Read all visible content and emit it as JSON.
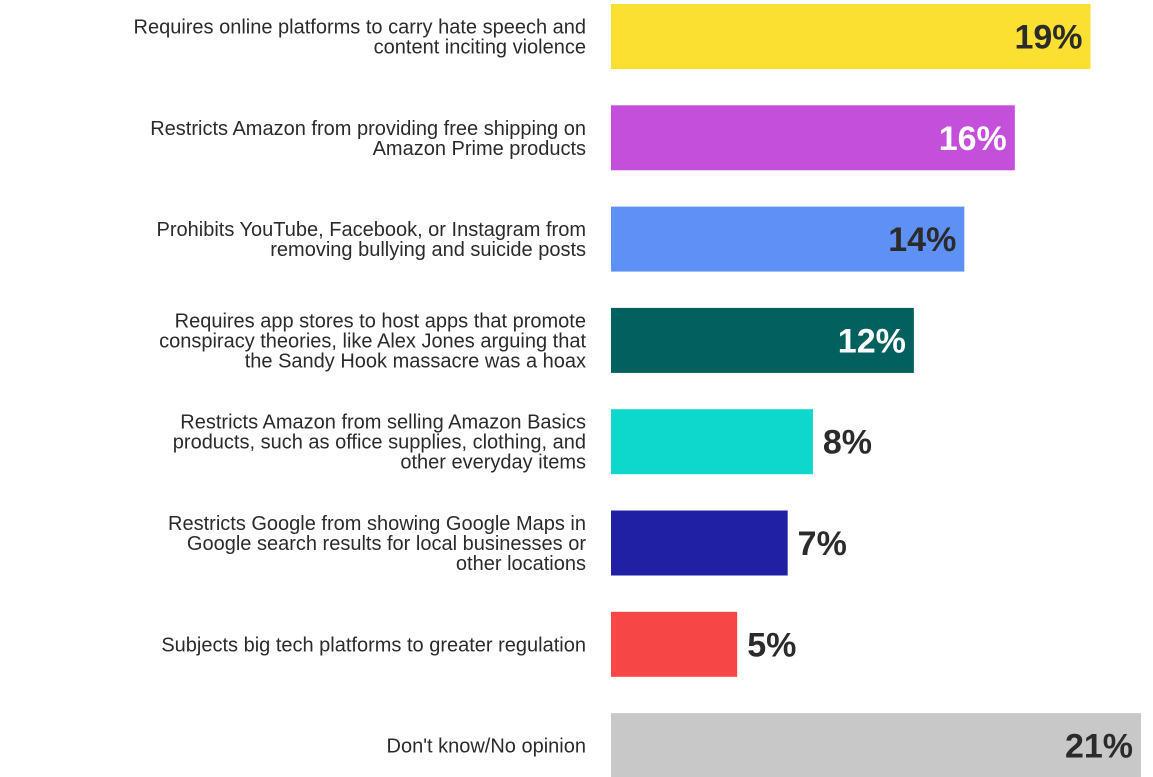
{
  "chart_data": {
    "type": "bar",
    "orientation": "horizontal",
    "title": "",
    "xlabel": "",
    "ylabel": "",
    "xlim": [
      0,
      21
    ],
    "grid": false,
    "legend": "none",
    "categories": [
      [
        "Requires online platforms to carry hate speech and",
        "content inciting violence"
      ],
      [
        "Restricts Amazon from providing free shipping on",
        "Amazon Prime products"
      ],
      [
        "Prohibits YouTube, Facebook, or Instagram from",
        "removing bullying and suicide posts"
      ],
      [
        "Requires app stores to host apps that promote",
        "conspiracy theories, like Alex Jones arguing that",
        "the Sandy Hook massacre was a hoax"
      ],
      [
        "Restricts Amazon from selling Amazon Basics",
        "products, such as office supplies, clothing, and",
        "other everyday items"
      ],
      [
        "Restricts Google from showing Google Maps in",
        "Google search results for local businesses or",
        "other locations"
      ],
      [
        "Subjects big tech platforms to greater regulation"
      ],
      [
        "Don't know/No opinion"
      ]
    ],
    "values": [
      19,
      16,
      14,
      12,
      8,
      7,
      5,
      21
    ],
    "value_labels": [
      "19%",
      "16%",
      "14%",
      "12%",
      "8%",
      "7%",
      "5%",
      "21%"
    ],
    "colors": [
      "#fbe032",
      "#c44fdb",
      "#5f91f5",
      "#02605e",
      "#0ed7cc",
      "#1f20a4",
      "#f74646",
      "#c8c8c8"
    ],
    "value_label_colors": [
      "#2b2b2b",
      "#ffffff",
      "#2b2b2b",
      "#ffffff",
      "#2b2b2b",
      "#2b2b2b",
      "#2b2b2b",
      "#2b2b2b"
    ],
    "value_label_position": [
      "inside",
      "inside",
      "inside",
      "inside",
      "outside",
      "outside",
      "outside",
      "inside"
    ]
  }
}
